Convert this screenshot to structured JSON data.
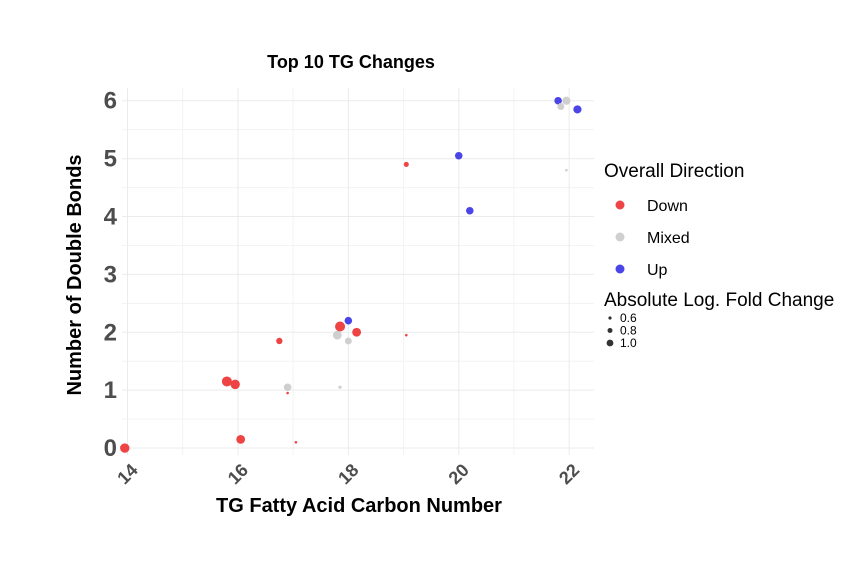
{
  "chart_data": {
    "type": "scatter",
    "title": "Top 10 TG Changes",
    "xlabel": "TG Fatty Acid Carbon Number",
    "ylabel": "Number of Double Bonds",
    "xlim": [
      13.9,
      22.45
    ],
    "ylim": [
      -0.12,
      6.22
    ],
    "x_ticks": [
      14,
      16,
      18,
      20,
      22
    ],
    "y_ticks": [
      0,
      1,
      2,
      3,
      4,
      5,
      6
    ],
    "grid": true,
    "legend_position": "right",
    "color_legend": {
      "title": "Overall Direction",
      "entries": [
        {
          "label": "Down",
          "color": "#ee4444"
        },
        {
          "label": "Mixed",
          "color": "#cfcfcf"
        },
        {
          "label": "Up",
          "color": "#4b45e8"
        }
      ]
    },
    "size_legend": {
      "title": "Absolute Log. Fold Change",
      "entries": [
        {
          "label": "0.6",
          "value": 0.6
        },
        {
          "label": "0.8",
          "value": 0.8
        },
        {
          "label": "1.0",
          "value": 1.0
        }
      ]
    },
    "points": [
      {
        "x": 13.95,
        "y": 0.0,
        "direction": "Down",
        "abs_lfc": 1.05
      },
      {
        "x": 16.05,
        "y": 0.15,
        "direction": "Down",
        "abs_lfc": 1.0
      },
      {
        "x": 17.05,
        "y": 0.1,
        "direction": "Down",
        "abs_lfc": 0.5
      },
      {
        "x": 15.8,
        "y": 1.15,
        "direction": "Down",
        "abs_lfc": 1.1
      },
      {
        "x": 15.95,
        "y": 1.1,
        "direction": "Down",
        "abs_lfc": 1.05
      },
      {
        "x": 16.9,
        "y": 1.05,
        "direction": "Mixed",
        "abs_lfc": 0.9
      },
      {
        "x": 16.9,
        "y": 0.95,
        "direction": "Down",
        "abs_lfc": 0.5
      },
      {
        "x": 17.85,
        "y": 1.05,
        "direction": "Mixed",
        "abs_lfc": 0.55
      },
      {
        "x": 16.75,
        "y": 1.85,
        "direction": "Down",
        "abs_lfc": 0.8
      },
      {
        "x": 17.8,
        "y": 1.95,
        "direction": "Mixed",
        "abs_lfc": 1.0
      },
      {
        "x": 17.85,
        "y": 2.1,
        "direction": "Down",
        "abs_lfc": 1.1
      },
      {
        "x": 18.0,
        "y": 1.85,
        "direction": "Mixed",
        "abs_lfc": 0.85
      },
      {
        "x": 18.0,
        "y": 2.2,
        "direction": "Up",
        "abs_lfc": 0.9
      },
      {
        "x": 18.15,
        "y": 2.0,
        "direction": "Down",
        "abs_lfc": 1.0
      },
      {
        "x": 19.05,
        "y": 1.95,
        "direction": "Down",
        "abs_lfc": 0.5
      },
      {
        "x": 19.05,
        "y": 4.9,
        "direction": "Down",
        "abs_lfc": 0.7
      },
      {
        "x": 20.0,
        "y": 5.05,
        "direction": "Up",
        "abs_lfc": 0.9
      },
      {
        "x": 20.2,
        "y": 4.1,
        "direction": "Up",
        "abs_lfc": 0.9
      },
      {
        "x": 21.8,
        "y": 6.0,
        "direction": "Up",
        "abs_lfc": 0.9
      },
      {
        "x": 21.85,
        "y": 5.9,
        "direction": "Mixed",
        "abs_lfc": 0.85
      },
      {
        "x": 21.95,
        "y": 6.0,
        "direction": "Mixed",
        "abs_lfc": 0.95
      },
      {
        "x": 22.15,
        "y": 5.85,
        "direction": "Up",
        "abs_lfc": 0.95
      },
      {
        "x": 21.95,
        "y": 4.8,
        "direction": "Mixed",
        "abs_lfc": 0.5
      }
    ]
  }
}
